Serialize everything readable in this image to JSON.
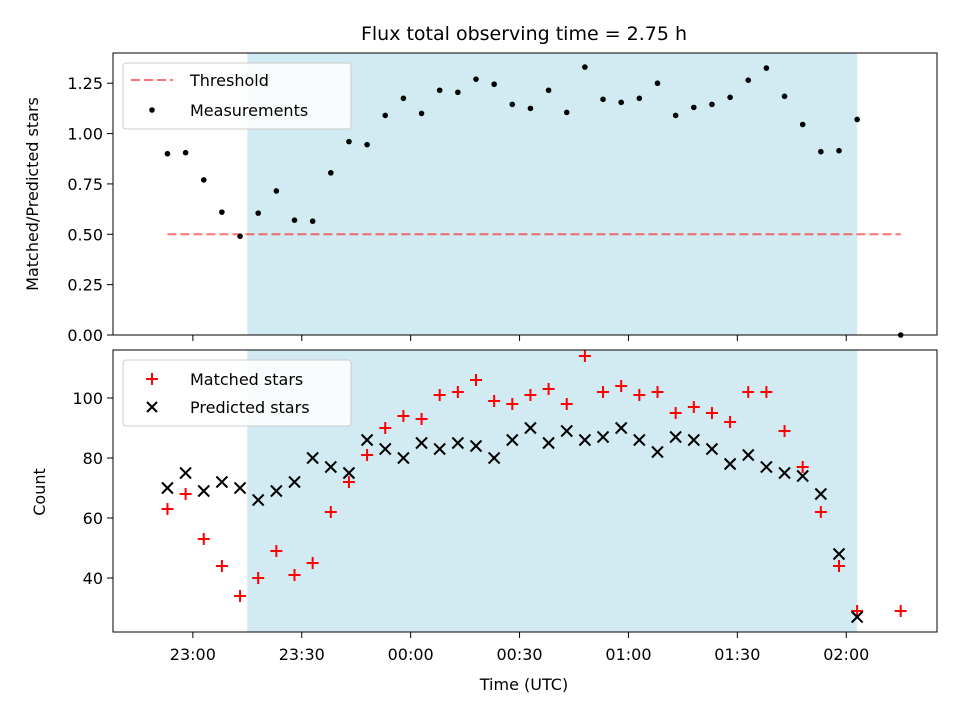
{
  "title": "Flux total observing time = 2.75 h",
  "colors": {
    "shade": "#add8e6",
    "threshold": "#ff0000",
    "measurements": "#000000",
    "matched": "#ff0000",
    "predicted": "#000000"
  },
  "chart_data": [
    {
      "type": "scatter",
      "ylabel": "Matched/Predicted stars",
      "ylim": [
        0,
        1.4
      ],
      "yticks": [
        0.0,
        0.25,
        0.5,
        0.75,
        1.0,
        1.25
      ],
      "ytick_labels": [
        "0.00",
        "0.25",
        "0.50",
        "0.75",
        "1.00",
        "1.25"
      ],
      "legend_position": "top-left",
      "shaded_region": {
        "x_start": "23:15",
        "x_end": "02:03"
      },
      "series": [
        {
          "name": "Threshold",
          "style": "dashed-line",
          "x": [
            "22:53",
            "02:15"
          ],
          "y": [
            0.5,
            0.5
          ]
        },
        {
          "name": "Measurements",
          "style": "dot",
          "x": [
            "22:53",
            "22:58",
            "23:03",
            "23:08",
            "23:13",
            "23:18",
            "23:23",
            "23:28",
            "23:33",
            "23:38",
            "23:43",
            "23:48",
            "23:53",
            "23:58",
            "00:03",
            "00:08",
            "00:13",
            "00:18",
            "00:23",
            "00:28",
            "00:33",
            "00:38",
            "00:43",
            "00:48",
            "00:53",
            "00:58",
            "01:03",
            "01:08",
            "01:13",
            "01:18",
            "01:23",
            "01:28",
            "01:33",
            "01:38",
            "01:43",
            "01:48",
            "01:53",
            "01:58",
            "02:03",
            "02:15"
          ],
          "y": [
            0.9,
            0.905,
            0.77,
            0.61,
            0.49,
            0.605,
            0.715,
            0.57,
            0.565,
            0.805,
            0.96,
            0.945,
            1.09,
            1.175,
            1.1,
            1.215,
            1.205,
            1.27,
            1.245,
            1.145,
            1.125,
            1.215,
            1.105,
            1.33,
            1.17,
            1.155,
            1.175,
            1.25,
            1.09,
            1.13,
            1.145,
            1.18,
            1.265,
            1.325,
            1.185,
            1.045,
            0.91,
            0.915,
            1.07,
            0.0
          ]
        }
      ]
    },
    {
      "type": "scatter",
      "ylabel": "Count",
      "xlabel": "Time (UTC)",
      "ylim": [
        22,
        116
      ],
      "yticks": [
        40,
        60,
        80,
        100
      ],
      "ytick_labels": [
        "40",
        "60",
        "80",
        "100"
      ],
      "xticks": [
        "23:00",
        "23:30",
        "00:00",
        "00:30",
        "01:00",
        "01:30",
        "02:00"
      ],
      "legend_position": "top-left",
      "shaded_region": {
        "x_start": "23:15",
        "x_end": "02:03"
      },
      "series": [
        {
          "name": "Matched stars",
          "marker": "plus",
          "x": [
            "22:53",
            "22:58",
            "23:03",
            "23:08",
            "23:13",
            "23:18",
            "23:23",
            "23:28",
            "23:33",
            "23:38",
            "23:43",
            "23:48",
            "23:53",
            "23:58",
            "00:03",
            "00:08",
            "00:13",
            "00:18",
            "00:23",
            "00:28",
            "00:33",
            "00:38",
            "00:43",
            "00:48",
            "00:53",
            "00:58",
            "01:03",
            "01:08",
            "01:13",
            "01:18",
            "01:23",
            "01:28",
            "01:33",
            "01:38",
            "01:43",
            "01:48",
            "01:53",
            "01:58",
            "02:03",
            "02:15"
          ],
          "y": [
            63,
            68,
            53,
            44,
            34,
            40,
            49,
            41,
            45,
            62,
            72,
            81,
            90,
            94,
            93,
            101,
            102,
            106,
            99,
            98,
            101,
            103,
            98,
            114,
            102,
            104,
            101,
            102,
            95,
            97,
            95,
            92,
            102,
            102,
            89,
            77,
            62,
            44,
            29,
            29
          ]
        },
        {
          "name": "Predicted stars",
          "marker": "x",
          "x": [
            "22:53",
            "22:58",
            "23:03",
            "23:08",
            "23:13",
            "23:18",
            "23:23",
            "23:28",
            "23:33",
            "23:38",
            "23:43",
            "23:48",
            "23:53",
            "23:58",
            "00:03",
            "00:08",
            "00:13",
            "00:18",
            "00:23",
            "00:28",
            "00:33",
            "00:38",
            "00:43",
            "00:48",
            "00:53",
            "00:58",
            "01:03",
            "01:08",
            "01:13",
            "01:18",
            "01:23",
            "01:28",
            "01:33",
            "01:38",
            "01:43",
            "01:48",
            "01:53",
            "01:58",
            "02:03"
          ],
          "y": [
            70,
            75,
            69,
            72,
            70,
            66,
            69,
            72,
            80,
            77,
            75,
            86,
            83,
            80,
            85,
            83,
            85,
            84,
            80,
            86,
            90,
            85,
            89,
            86,
            87,
            90,
            86,
            82,
            87,
            86,
            83,
            78,
            81,
            77,
            75,
            74,
            68,
            48,
            27
          ]
        }
      ]
    }
  ]
}
